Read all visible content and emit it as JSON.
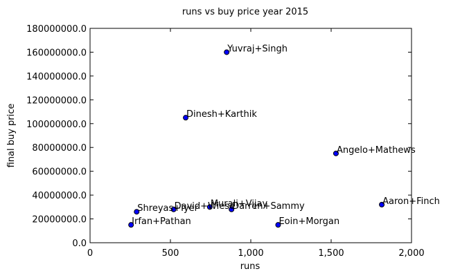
{
  "chart_data": {
    "type": "scatter",
    "title": "runs vs buy price year 2015",
    "xlabel": "runs",
    "ylabel": "final buy price",
    "xlim": [
      0,
      2000
    ],
    "ylim": [
      0,
      180000000
    ],
    "xticks": [
      0,
      500,
      1000,
      1500,
      2000
    ],
    "xtick_labels": [
      "0",
      "500",
      "1,000",
      "1,500",
      "2,000"
    ],
    "yticks": [
      0,
      20000000,
      40000000,
      60000000,
      80000000,
      100000000,
      120000000,
      140000000,
      160000000,
      180000000
    ],
    "ytick_labels": [
      "0.0",
      "20000000.0",
      "40000000.0",
      "60000000.0",
      "80000000.0",
      "100000000.0",
      "120000000.0",
      "140000000.0",
      "160000000.0",
      "180000000.0"
    ],
    "grid": false,
    "marker_color": "#0000ff",
    "points": [
      {
        "label": "Yuvraj+Singh",
        "x": 850,
        "y": 160000000
      },
      {
        "label": "Dinesh+Karthik",
        "x": 595,
        "y": 105000000
      },
      {
        "label": "Angelo+Mathews",
        "x": 1530,
        "y": 75000000
      },
      {
        "label": "Aaron+Finch",
        "x": 1815,
        "y": 32000000
      },
      {
        "label": "Murali+Vijay",
        "x": 745,
        "y": 30000000
      },
      {
        "label": "David+Wiese",
        "x": 520,
        "y": 28000000
      },
      {
        "label": "Darren+Sammy",
        "x": 880,
        "y": 28000000
      },
      {
        "label": "Shreyas+Iyer",
        "x": 290,
        "y": 26000000
      },
      {
        "label": "Irfan+Pathan",
        "x": 255,
        "y": 15000000
      },
      {
        "label": "Eoin+Morgan",
        "x": 1170,
        "y": 15000000
      }
    ]
  }
}
